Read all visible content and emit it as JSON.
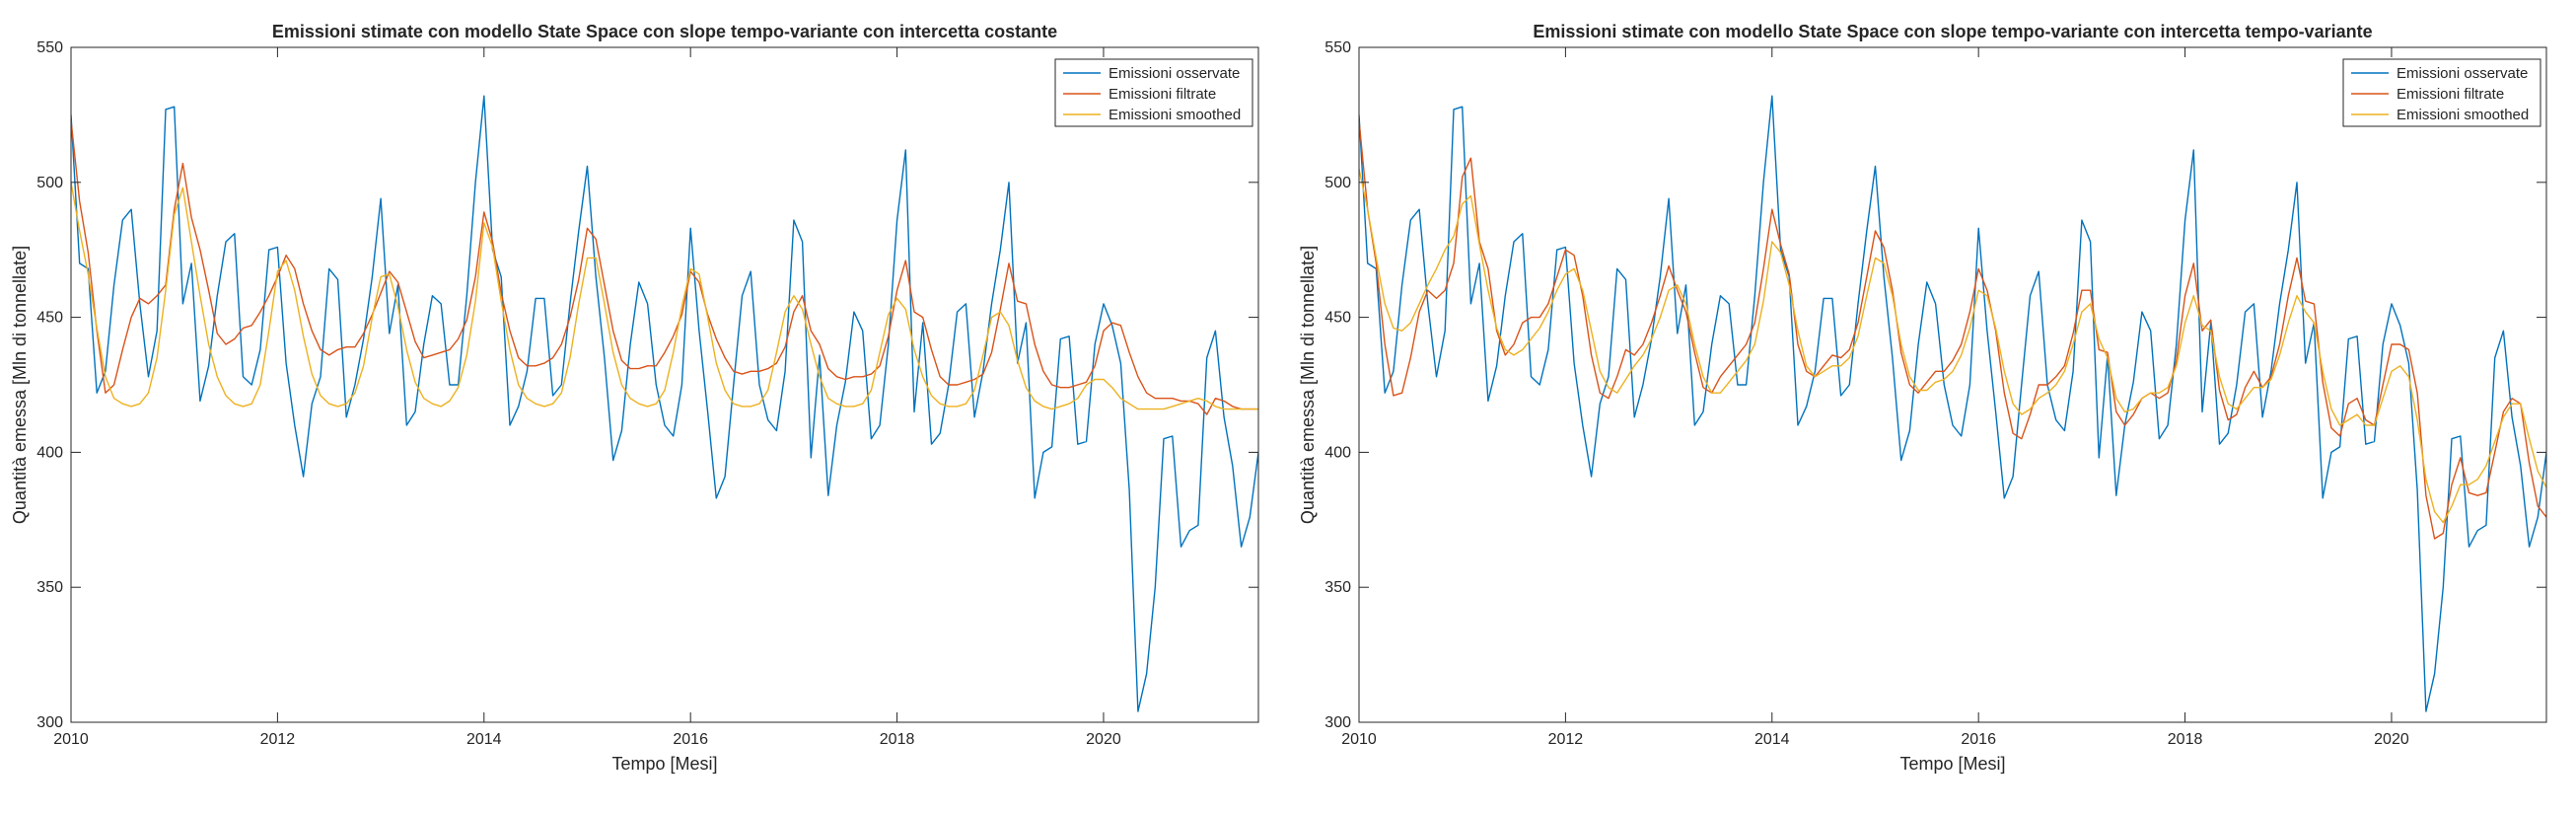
{
  "colors": {
    "observed": "#0072BD",
    "filtered": "#D95319",
    "smoothed": "#EDB120",
    "axis": "#262626",
    "background": "#ffffff"
  },
  "chart_data": [
    {
      "type": "line",
      "title": "Emissioni stimate con modello State Space con slope tempo-variante con intercetta costante",
      "xlabel": "Tempo [Mesi]",
      "ylabel": "Quantità emessa [Mln di tonnellate]",
      "xlim": [
        2010,
        2021.5
      ],
      "ylim": [
        300,
        550
      ],
      "xticks": [
        "2010",
        "2012",
        "2014",
        "2016",
        "2018",
        "2020"
      ],
      "yticks": [
        "300",
        "350",
        "400",
        "450",
        "500",
        "550"
      ],
      "legend_position": "top-right",
      "grid": false,
      "x_start": 2010,
      "x_step_months": 1,
      "series": [
        {
          "name": "Emissioni osservate",
          "color": "#0072BD",
          "values": [
            525,
            470,
            468,
            422,
            430,
            462,
            486,
            490,
            455,
            428,
            445,
            527,
            528,
            455,
            470,
            419,
            432,
            458,
            478,
            481,
            428,
            425,
            438,
            475,
            476,
            433,
            410,
            391,
            418,
            428,
            468,
            464,
            413,
            425,
            442,
            465,
            494,
            444,
            462,
            410,
            415,
            440,
            458,
            455,
            425,
            425,
            458,
            500,
            532,
            475,
            465,
            410,
            417,
            430,
            457,
            457,
            421,
            425,
            455,
            482,
            506,
            465,
            435,
            397,
            408,
            440,
            463,
            455,
            425,
            410,
            406,
            425,
            483,
            445,
            415,
            383,
            391,
            425,
            458,
            467,
            425,
            412,
            408,
            430,
            486,
            478,
            398,
            436,
            384,
            410,
            426,
            452,
            445,
            405,
            410,
            440,
            486,
            512,
            415,
            448,
            403,
            407,
            425,
            452,
            455,
            413,
            430,
            455,
            475,
            500,
            433,
            448,
            383,
            400,
            402,
            442,
            443,
            403,
            404,
            440,
            455,
            447,
            433,
            386,
            304,
            318,
            350,
            405,
            406,
            365,
            371,
            373,
            435,
            445,
            413,
            395,
            365,
            376,
            400,
            425
          ]
        },
        {
          "name": "Emissioni filtrate",
          "color": "#D95319",
          "values": [
            523,
            493,
            474,
            445,
            422,
            425,
            438,
            450,
            457,
            455,
            458,
            462,
            490,
            507,
            487,
            475,
            460,
            444,
            440,
            442,
            446,
            447,
            452,
            458,
            465,
            473,
            468,
            455,
            445,
            438,
            436,
            438,
            439,
            439,
            444,
            451,
            459,
            467,
            463,
            452,
            441,
            435,
            436,
            437,
            438,
            442,
            449,
            465,
            489,
            478,
            459,
            445,
            435,
            432,
            432,
            433,
            435,
            440,
            450,
            464,
            483,
            479,
            462,
            445,
            434,
            431,
            431,
            432,
            432,
            437,
            443,
            451,
            467,
            463,
            451,
            442,
            435,
            430,
            429,
            430,
            430,
            431,
            433,
            439,
            452,
            458,
            445,
            440,
            431,
            428,
            427,
            428,
            428,
            429,
            432,
            443,
            460,
            471,
            452,
            450,
            438,
            428,
            425,
            425,
            426,
            427,
            429,
            437,
            453,
            470,
            456,
            455,
            440,
            430,
            425,
            424,
            424,
            425,
            426,
            432,
            445,
            448,
            447,
            437,
            428,
            422,
            420,
            420,
            420,
            419,
            419,
            418,
            414,
            420,
            419,
            417,
            416,
            416,
            416,
            416
          ]
        },
        {
          "name": "Emissioni smoothed",
          "color": "#EDB120",
          "values": [
            500,
            482,
            466,
            446,
            428,
            420,
            418,
            417,
            418,
            422,
            435,
            460,
            488,
            498,
            478,
            458,
            440,
            428,
            421,
            418,
            417,
            418,
            425,
            445,
            467,
            471,
            460,
            443,
            429,
            421,
            418,
            417,
            418,
            422,
            432,
            450,
            465,
            466,
            454,
            438,
            426,
            420,
            418,
            417,
            419,
            424,
            436,
            456,
            485,
            476,
            456,
            438,
            425,
            420,
            418,
            417,
            418,
            422,
            435,
            455,
            472,
            472,
            455,
            437,
            425,
            420,
            418,
            417,
            418,
            423,
            437,
            454,
            468,
            466,
            450,
            433,
            423,
            418,
            417,
            417,
            418,
            423,
            437,
            452,
            458,
            453,
            440,
            428,
            420,
            418,
            417,
            417,
            418,
            423,
            437,
            451,
            457,
            453,
            438,
            428,
            421,
            418,
            417,
            417,
            418,
            423,
            436,
            450,
            452,
            447,
            434,
            424,
            419,
            417,
            416,
            417,
            418,
            420,
            425,
            427,
            427,
            424,
            420,
            418,
            416,
            416,
            416,
            416,
            417,
            418,
            419,
            420,
            419,
            417,
            416,
            416,
            416,
            416,
            416,
            416
          ]
        }
      ]
    },
    {
      "type": "line",
      "title": "Emissioni stimate con modello State Space con slope tempo-variante con intercetta tempo-variante",
      "xlabel": "Tempo [Mesi]",
      "ylabel": "Quantità emessa [Mln di tonnellate]",
      "xlim": [
        2010,
        2021.5
      ],
      "ylim": [
        300,
        550
      ],
      "xticks": [
        "2010",
        "2012",
        "2014",
        "2016",
        "2018",
        "2020"
      ],
      "yticks": [
        "300",
        "350",
        "400",
        "450",
        "500",
        "550"
      ],
      "legend_position": "top-right",
      "grid": false,
      "x_start": 2010,
      "x_step_months": 1,
      "series": [
        {
          "name": "Emissioni osservate",
          "color": "#0072BD",
          "values": [
            525,
            470,
            468,
            422,
            430,
            462,
            486,
            490,
            455,
            428,
            445,
            527,
            528,
            455,
            470,
            419,
            432,
            458,
            478,
            481,
            428,
            425,
            438,
            475,
            476,
            433,
            410,
            391,
            418,
            428,
            468,
            464,
            413,
            425,
            442,
            465,
            494,
            444,
            462,
            410,
            415,
            440,
            458,
            455,
            425,
            425,
            458,
            500,
            532,
            475,
            465,
            410,
            417,
            430,
            457,
            457,
            421,
            425,
            455,
            482,
            506,
            465,
            435,
            397,
            408,
            440,
            463,
            455,
            425,
            410,
            406,
            425,
            483,
            445,
            415,
            383,
            391,
            425,
            458,
            467,
            425,
            412,
            408,
            430,
            486,
            478,
            398,
            436,
            384,
            410,
            426,
            452,
            445,
            405,
            410,
            440,
            486,
            512,
            415,
            448,
            403,
            407,
            425,
            452,
            455,
            413,
            430,
            455,
            475,
            500,
            433,
            448,
            383,
            400,
            402,
            442,
            443,
            403,
            404,
            440,
            455,
            447,
            433,
            386,
            304,
            318,
            350,
            405,
            406,
            365,
            371,
            373,
            435,
            445,
            413,
            395,
            365,
            376,
            400,
            425
          ]
        },
        {
          "name": "Emissioni filtrate",
          "color": "#D95319",
          "values": [
            523,
            490,
            470,
            440,
            421,
            422,
            435,
            452,
            460,
            457,
            460,
            470,
            502,
            509,
            478,
            468,
            445,
            436,
            440,
            448,
            450,
            450,
            455,
            465,
            475,
            473,
            458,
            436,
            422,
            420,
            428,
            438,
            436,
            440,
            448,
            458,
            469,
            460,
            452,
            437,
            424,
            422,
            428,
            432,
            436,
            440,
            448,
            468,
            490,
            477,
            466,
            440,
            430,
            428,
            432,
            436,
            435,
            438,
            448,
            465,
            482,
            476,
            460,
            437,
            425,
            422,
            426,
            430,
            430,
            434,
            440,
            452,
            468,
            460,
            445,
            422,
            407,
            405,
            414,
            425,
            425,
            428,
            432,
            444,
            460,
            460,
            438,
            437,
            415,
            410,
            414,
            420,
            422,
            420,
            422,
            434,
            458,
            470,
            445,
            449,
            423,
            412,
            414,
            424,
            430,
            424,
            428,
            440,
            458,
            472,
            456,
            455,
            426,
            409,
            406,
            418,
            420,
            412,
            410,
            425,
            440,
            440,
            438,
            422,
            384,
            368,
            370,
            388,
            398,
            385,
            384,
            385,
            400,
            415,
            420,
            418,
            396,
            380,
            376,
            383
          ]
        },
        {
          "name": "Emissioni smoothed",
          "color": "#EDB120",
          "values": [
            505,
            490,
            472,
            455,
            446,
            445,
            448,
            455,
            462,
            468,
            475,
            480,
            492,
            495,
            477,
            460,
            446,
            438,
            436,
            438,
            442,
            446,
            452,
            460,
            466,
            468,
            460,
            445,
            430,
            424,
            422,
            427,
            432,
            436,
            442,
            450,
            460,
            462,
            455,
            440,
            428,
            422,
            422,
            426,
            430,
            434,
            440,
            456,
            478,
            474,
            462,
            445,
            432,
            428,
            430,
            432,
            432,
            435,
            443,
            458,
            472,
            470,
            458,
            440,
            428,
            423,
            423,
            426,
            427,
            430,
            436,
            446,
            460,
            458,
            446,
            430,
            418,
            414,
            416,
            420,
            422,
            425,
            430,
            440,
            452,
            455,
            442,
            435,
            420,
            415,
            416,
            420,
            422,
            422,
            424,
            432,
            448,
            458,
            447,
            445,
            428,
            418,
            416,
            420,
            424,
            424,
            427,
            436,
            448,
            458,
            452,
            448,
            430,
            416,
            410,
            412,
            414,
            410,
            410,
            420,
            430,
            432,
            428,
            412,
            390,
            378,
            374,
            380,
            388,
            388,
            390,
            395,
            404,
            413,
            418,
            418,
            405,
            393,
            387,
            384
          ]
        }
      ]
    }
  ]
}
